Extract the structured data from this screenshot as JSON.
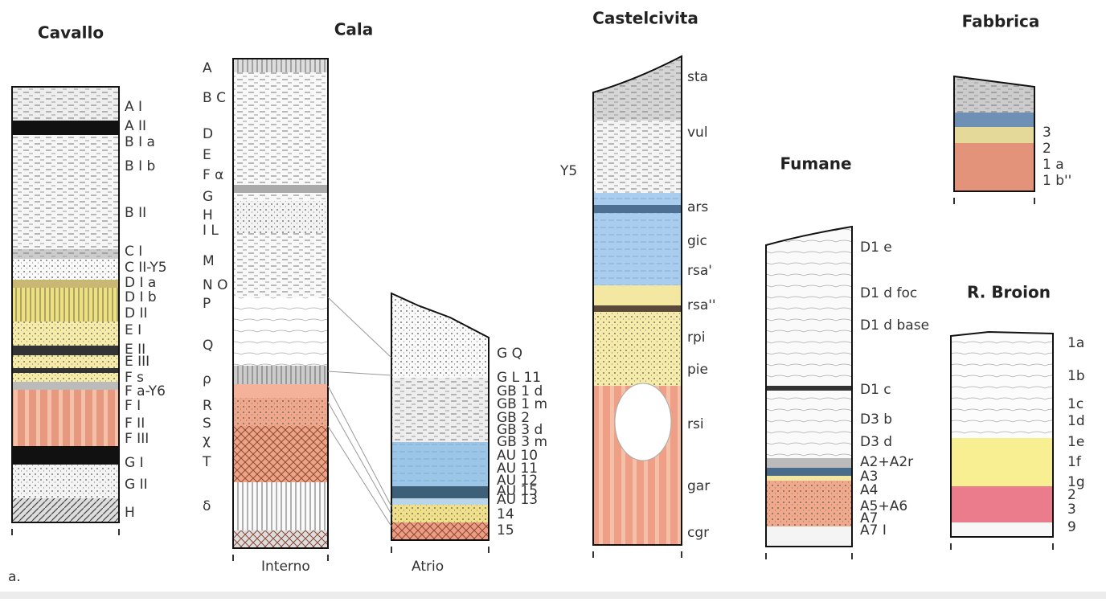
{
  "note": "a.",
  "columns": [
    {
      "title": "Cavallo",
      "labels": [
        "A I",
        "A II",
        "B I a",
        "B I b",
        "B II",
        "C I",
        "C II-Y5",
        "D I a",
        "D I b",
        "D II",
        "E I",
        "E II",
        "E III",
        "F s",
        "F a-Y6",
        "F I",
        "F II",
        "F III",
        "G I",
        "G II",
        "H"
      ]
    },
    {
      "title": "Cala",
      "labels": [
        "A",
        "B C",
        "D",
        "E",
        "F α",
        "G",
        "H",
        "I L",
        "M",
        "N O",
        "P",
        "Q",
        "ρ",
        "R",
        "S",
        "χ",
        "T",
        "δ"
      ],
      "footer": "Interno"
    },
    {
      "labels": [
        "G Q",
        "G L 11",
        "GB 1 d",
        "GB 1 m",
        "GB 2",
        "GB 3 d",
        "GB 3 m",
        "AU 10",
        "AU 11",
        "AU 12",
        "AU 15",
        "AU 13",
        "14",
        "15"
      ],
      "footer": "Atrio"
    },
    {
      "title": "Castelcivita",
      "side_label": "Y5",
      "labels": [
        "sta",
        "vul",
        "ars",
        "gic",
        "rsa'",
        "rsa''",
        "rpi",
        "pie",
        "rsi",
        "gar",
        "cgr"
      ]
    },
    {
      "title": "Fumane",
      "labels": [
        "D1 e",
        "D1 d foc",
        "D1 d base",
        "D1 c",
        "D3 b",
        "D3 d",
        "A2+A2r",
        "A3",
        "A4",
        "A5+A6",
        "A7",
        "A7 I"
      ]
    },
    {
      "title": "Fabbrica",
      "labels": [
        "3",
        "2",
        "1 a",
        "1 b''"
      ]
    },
    {
      "title": "R. Broion",
      "labels": [
        "1a",
        "1b",
        "1c",
        "1d",
        "1e",
        "1f",
        "1g",
        "2",
        "3",
        "9"
      ]
    }
  ]
}
